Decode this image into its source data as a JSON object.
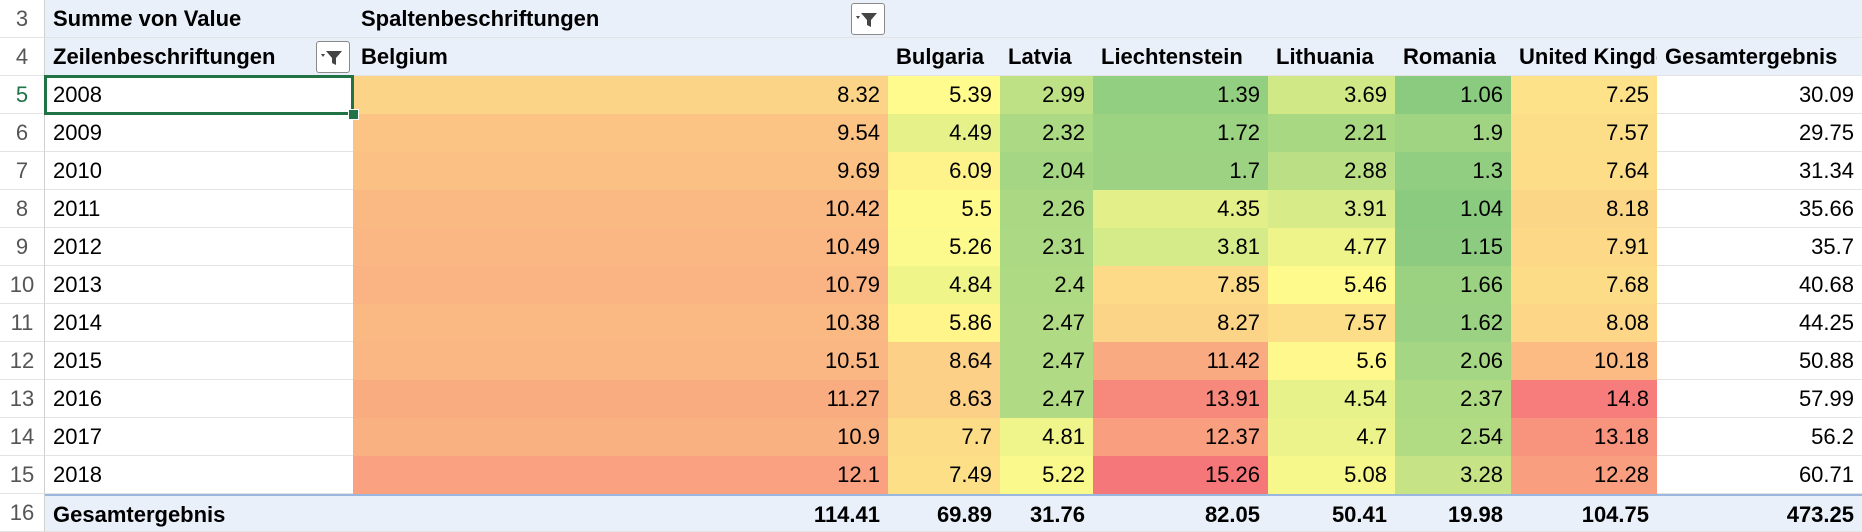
{
  "row_numbers": [
    3,
    4,
    5,
    6,
    7,
    8,
    9,
    10,
    11,
    12,
    13,
    14,
    15,
    16
  ],
  "pivot": {
    "value_label": "Summe von Value",
    "column_label": "Spaltenbeschriftungen",
    "row_label": "Zeilenbeschriftungen",
    "columns": [
      "Belgium",
      "Bulgaria",
      "Latvia",
      "Liechtenstein",
      "Lithuania",
      "Romania",
      "United Kingdom",
      "Gesamtergebnis"
    ],
    "rows": [
      {
        "label": "2008",
        "values": [
          8.32,
          5.39,
          2.99,
          1.39,
          3.69,
          1.06,
          7.25
        ],
        "total": 30.09
      },
      {
        "label": "2009",
        "values": [
          9.54,
          4.49,
          2.32,
          1.72,
          2.21,
          1.9,
          7.57
        ],
        "total": 29.75
      },
      {
        "label": "2010",
        "values": [
          9.69,
          6.09,
          2.04,
          1.7,
          2.88,
          1.3,
          7.64
        ],
        "total": 31.34
      },
      {
        "label": "2011",
        "values": [
          10.42,
          5.5,
          2.26,
          4.35,
          3.91,
          1.04,
          8.18
        ],
        "total": 35.66
      },
      {
        "label": "2012",
        "values": [
          10.49,
          5.26,
          2.31,
          3.81,
          4.77,
          1.15,
          7.91
        ],
        "total": 35.7
      },
      {
        "label": "2013",
        "values": [
          10.79,
          4.84,
          2.4,
          7.85,
          5.46,
          1.66,
          7.68
        ],
        "total": 40.68
      },
      {
        "label": "2014",
        "values": [
          10.38,
          5.86,
          2.47,
          8.27,
          7.57,
          1.62,
          8.08
        ],
        "total": 44.25
      },
      {
        "label": "2015",
        "values": [
          10.51,
          8.64,
          2.47,
          11.42,
          5.6,
          2.06,
          10.18
        ],
        "total": 50.88
      },
      {
        "label": "2016",
        "values": [
          11.27,
          8.63,
          2.47,
          13.91,
          4.54,
          2.37,
          14.8
        ],
        "total": 57.99
      },
      {
        "label": "2017",
        "values": [
          10.9,
          7.7,
          4.81,
          12.37,
          4.7,
          2.54,
          13.18
        ],
        "total": 56.2
      },
      {
        "label": "2018",
        "values": [
          12.1,
          7.49,
          5.22,
          15.26,
          5.08,
          3.28,
          12.28
        ],
        "total": 60.71
      }
    ],
    "grand_total": {
      "label": "Gesamtergebnis",
      "values": [
        114.41,
        69.89,
        31.76,
        82.05,
        50.41,
        19.98,
        104.75
      ],
      "total": 473.25
    }
  },
  "color_scale": {
    "min_color": "#8acb80",
    "mid_color": "#fffb8c",
    "max_color": "#f6777a"
  }
}
